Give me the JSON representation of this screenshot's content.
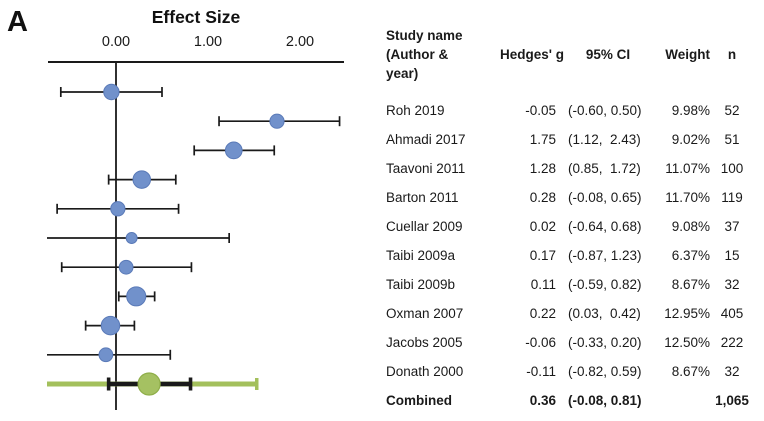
{
  "panel_label": "A",
  "chart_data": {
    "type": "forest",
    "title": "Effect Size",
    "x_ticks": [
      {
        "value": 0.0,
        "label": "0.00"
      },
      {
        "value": 1.0,
        "label": "1.00"
      },
      {
        "value": 2.0,
        "label": "2.00"
      }
    ],
    "xlim": [
      -0.75,
      2.48
    ],
    "zero_line": 0.0,
    "legend_position": "none",
    "grid": false,
    "studies": [
      {
        "label": "Roh 2019",
        "g": -0.05,
        "ci": [
          -0.6,
          0.5
        ],
        "ci_text": "(-0.60, 0.50)",
        "weight": 9.98,
        "weight_text": "9.98%",
        "n": "52"
      },
      {
        "label": "Ahmadi 2017",
        "g": 1.75,
        "ci": [
          1.12,
          2.43
        ],
        "ci_text": "(1.12,  2.43)",
        "weight": 9.02,
        "weight_text": "9.02%",
        "n": "51"
      },
      {
        "label": "Taavoni 2011",
        "g": 1.28,
        "ci": [
          0.85,
          1.72
        ],
        "ci_text": "(0.85,  1.72)",
        "weight": 11.07,
        "weight_text": "11.07%",
        "n": "100"
      },
      {
        "label": "Barton 2011",
        "g": 0.28,
        "ci": [
          -0.08,
          0.65
        ],
        "ci_text": "(-0.08, 0.65)",
        "weight": 11.7,
        "weight_text": "11.70%",
        "n": "119"
      },
      {
        "label": "Cuellar 2009",
        "g": 0.02,
        "ci": [
          -0.64,
          0.68
        ],
        "ci_text": "(-0.64, 0.68)",
        "weight": 9.08,
        "weight_text": "9.08%",
        "n": "37"
      },
      {
        "label": "Taibi 2009a",
        "g": 0.17,
        "ci": [
          -0.87,
          1.23
        ],
        "ci_text": "(-0.87, 1.23)",
        "weight": 6.37,
        "weight_text": "6.37%",
        "n": "15"
      },
      {
        "label": "Taibi 2009b",
        "g": 0.11,
        "ci": [
          -0.59,
          0.82
        ],
        "ci_text": "(-0.59, 0.82)",
        "weight": 8.67,
        "weight_text": "8.67%",
        "n": "32"
      },
      {
        "label": "Oxman 2007",
        "g": 0.22,
        "ci": [
          0.03,
          0.42
        ],
        "ci_text": "(0.03,  0.42)",
        "weight": 12.95,
        "weight_text": "12.95%",
        "n": "405"
      },
      {
        "label": "Jacobs 2005",
        "g": -0.06,
        "ci": [
          -0.33,
          0.2
        ],
        "ci_text": "(-0.33, 0.20)",
        "weight": 12.5,
        "weight_text": "12.50%",
        "n": "222"
      },
      {
        "label": "Donath 2000",
        "g": -0.11,
        "ci": [
          -0.82,
          0.59
        ],
        "ci_text": "(-0.82, 0.59)",
        "weight": 8.67,
        "weight_text": "8.67%",
        "n": "32"
      }
    ],
    "combined": {
      "label": "Combined",
      "g": 0.36,
      "ci": [
        -0.08,
        0.81
      ],
      "ci_text": "(-0.08, 0.81)",
      "weight_text": "",
      "n": "1,065",
      "prediction_interval": [
        -0.75,
        1.53
      ]
    },
    "colors": {
      "point_fill": "#7191cb",
      "point_border": "#5a7ab8",
      "combined_fill": "#a5c162",
      "combined_border": "#8fae49",
      "interval_line": "#a3c05c",
      "line": "#1a1a1a"
    }
  },
  "table": {
    "headers": {
      "study": "Study name (Author & year)",
      "g": "Hedges' g",
      "ci": "95% CI",
      "weight": "Weight",
      "n": "n"
    }
  }
}
